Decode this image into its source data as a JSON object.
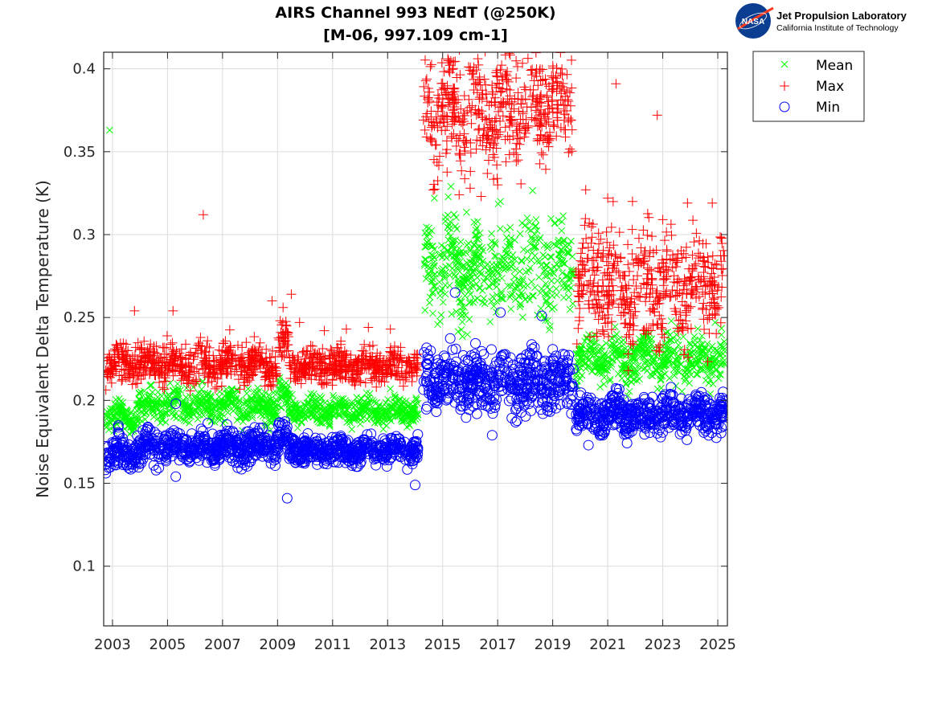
{
  "chart_data": {
    "type": "scatter",
    "title": "AIRS Channel 993 NEdT (@250K)",
    "subtitle": "[M-06, 997.109 cm-1]",
    "xlabel": "",
    "ylabel": "Noise Equivalent Delta Temperature (K)",
    "xlim": [
      2002.68,
      2025.35
    ],
    "ylim": [
      0.064,
      0.41
    ],
    "xticks": [
      2003,
      2005,
      2007,
      2009,
      2011,
      2013,
      2015,
      2017,
      2019,
      2021,
      2023,
      2025
    ],
    "xtick_labels": [
      "2003",
      "2005",
      "2007",
      "2009",
      "2011",
      "2013",
      "2015",
      "2017",
      "2019",
      "2021",
      "2023",
      "2025"
    ],
    "yticks": [
      0.1,
      0.15,
      0.2,
      0.25,
      0.3,
      0.35,
      0.4
    ],
    "ytick_labels": [
      "0.1",
      "0.15",
      "0.2",
      "0.25",
      "0.3",
      "0.35",
      "0.4"
    ],
    "grid": true,
    "legend_position": "outside-top-right",
    "series": [
      {
        "name": "Mean",
        "marker": "x",
        "color": "#00ff00",
        "segments": [
          {
            "x_start": 2002.75,
            "x_end": 2003.9,
            "center": 0.19,
            "spread": 0.004
          },
          {
            "x_start": 2003.9,
            "x_end": 2009.0,
            "center": 0.197,
            "spread": 0.005
          },
          {
            "x_start": 2009.0,
            "x_end": 2009.4,
            "center": 0.203,
            "spread": 0.005
          },
          {
            "x_start": 2009.4,
            "x_end": 2014.1,
            "center": 0.194,
            "spread": 0.004
          },
          {
            "x_start": 2014.3,
            "x_end": 2019.75,
            "center": 0.28,
            "spread": 0.014
          },
          {
            "x_start": 2019.85,
            "x_end": 2025.25,
            "center": 0.225,
            "spread": 0.007
          }
        ],
        "outliers": [
          [
            2002.9,
            0.363
          ],
          [
            2015.3,
            0.329
          ],
          [
            2014.7,
            0.322
          ],
          [
            2017.1,
            0.32
          ],
          [
            2013.1,
            0.207
          ],
          [
            2024.9,
            0.247
          ]
        ]
      },
      {
        "name": "Max",
        "marker": "+",
        "color": "#ff0000",
        "segments": [
          {
            "x_start": 2002.75,
            "x_end": 2009.0,
            "center": 0.222,
            "spread": 0.006
          },
          {
            "x_start": 2009.0,
            "x_end": 2009.4,
            "center": 0.235,
            "spread": 0.007
          },
          {
            "x_start": 2009.4,
            "x_end": 2014.1,
            "center": 0.221,
            "spread": 0.005
          },
          {
            "x_start": 2014.3,
            "x_end": 2019.75,
            "center": 0.376,
            "spread": 0.017
          },
          {
            "x_start": 2019.85,
            "x_end": 2025.25,
            "center": 0.27,
            "spread": 0.017
          }
        ],
        "outliers": [
          [
            2006.3,
            0.312
          ],
          [
            2003.8,
            0.254
          ],
          [
            2005.2,
            0.254
          ],
          [
            2008.8,
            0.26
          ],
          [
            2009.2,
            0.256
          ],
          [
            2009.5,
            0.264
          ],
          [
            2009.8,
            0.247
          ],
          [
            2010.7,
            0.242
          ],
          [
            2011.5,
            0.243
          ],
          [
            2012.3,
            0.244
          ],
          [
            2013.1,
            0.243
          ],
          [
            2021.3,
            0.391
          ],
          [
            2022.8,
            0.372
          ],
          [
            2020.2,
            0.327
          ],
          [
            2021.0,
            0.322
          ],
          [
            2021.9,
            0.32
          ],
          [
            2023.0,
            0.309
          ],
          [
            2023.9,
            0.319
          ],
          [
            2024.8,
            0.319
          ],
          [
            2016.4,
            0.323
          ],
          [
            2016.0,
            0.328
          ],
          [
            2017.0,
            0.33
          ],
          [
            2015.6,
            0.324
          ]
        ]
      },
      {
        "name": "Min",
        "marker": "o",
        "color": "#0000ff",
        "segments": [
          {
            "x_start": 2002.75,
            "x_end": 2003.9,
            "center": 0.168,
            "spread": 0.005
          },
          {
            "x_start": 2003.9,
            "x_end": 2009.0,
            "center": 0.172,
            "spread": 0.005
          },
          {
            "x_start": 2009.0,
            "x_end": 2009.4,
            "center": 0.177,
            "spread": 0.005
          },
          {
            "x_start": 2009.4,
            "x_end": 2014.1,
            "center": 0.17,
            "spread": 0.004
          },
          {
            "x_start": 2014.3,
            "x_end": 2019.75,
            "center": 0.212,
            "spread": 0.009
          },
          {
            "x_start": 2019.85,
            "x_end": 2025.25,
            "center": 0.192,
            "spread": 0.006
          }
        ],
        "outliers": [
          [
            2009.35,
            0.141
          ],
          [
            2014.0,
            0.149
          ],
          [
            2005.3,
            0.154
          ],
          [
            2015.45,
            0.265
          ],
          [
            2017.1,
            0.253
          ],
          [
            2018.6,
            0.251
          ],
          [
            2016.8,
            0.179
          ],
          [
            2020.3,
            0.173
          ],
          [
            2005.3,
            0.198
          ]
        ]
      }
    ]
  },
  "logo": {
    "emblem_text": "NASA",
    "title": "Jet Propulsion Laboratory",
    "subtitle": "California Institute of Technology"
  }
}
